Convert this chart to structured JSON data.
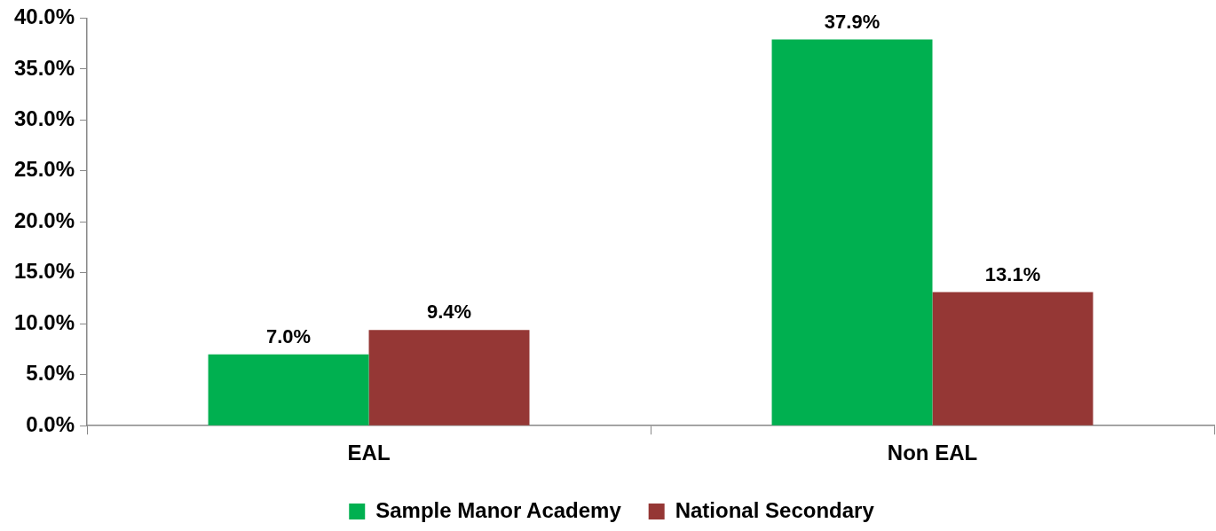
{
  "chart_data": {
    "type": "bar",
    "categories": [
      "EAL",
      "Non EAL"
    ],
    "series": [
      {
        "name": "Sample Manor Academy",
        "color": "#00b050",
        "values": [
          7.0,
          37.9
        ],
        "value_labels": [
          "7.0%",
          "37.9%"
        ]
      },
      {
        "name": "National Secondary",
        "color": "#953735",
        "values": [
          9.4,
          13.1
        ],
        "value_labels": [
          "9.4%",
          "13.1%"
        ]
      }
    ],
    "ylim": [
      0,
      40
    ],
    "yticks": [
      {
        "value": 0,
        "label": "0.0%"
      },
      {
        "value": 5,
        "label": "5.0%"
      },
      {
        "value": 10,
        "label": "10.0%"
      },
      {
        "value": 15,
        "label": "15.0%"
      },
      {
        "value": 20,
        "label": "20.0%"
      },
      {
        "value": 25,
        "label": "25.0%"
      },
      {
        "value": 30,
        "label": "30.0%"
      },
      {
        "value": 35,
        "label": "35.0%"
      },
      {
        "value": 40,
        "label": "40.0%"
      }
    ],
    "grid": false,
    "legend": "bottom"
  }
}
